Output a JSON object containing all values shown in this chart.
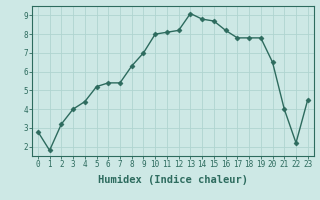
{
  "x": [
    0,
    1,
    2,
    3,
    4,
    5,
    6,
    7,
    8,
    9,
    10,
    11,
    12,
    13,
    14,
    15,
    16,
    17,
    18,
    19,
    20,
    21,
    22,
    23
  ],
  "y": [
    2.8,
    1.8,
    3.2,
    4.0,
    4.4,
    5.2,
    5.4,
    5.4,
    6.3,
    7.0,
    8.0,
    8.1,
    8.2,
    9.1,
    8.8,
    8.7,
    8.2,
    7.8,
    7.8,
    7.8,
    6.5,
    4.0,
    2.2,
    4.5
  ],
  "line_color": "#2d6b5e",
  "marker": "D",
  "marker_size": 2.5,
  "bg_color": "#cde8e5",
  "grid_color": "#b0d4d0",
  "xlabel": "Humidex (Indice chaleur)",
  "ylim": [
    1.5,
    9.5
  ],
  "xlim": [
    -0.5,
    23.5
  ],
  "yticks": [
    2,
    3,
    4,
    5,
    6,
    7,
    8,
    9
  ],
  "xticks": [
    0,
    1,
    2,
    3,
    4,
    5,
    6,
    7,
    8,
    9,
    10,
    11,
    12,
    13,
    14,
    15,
    16,
    17,
    18,
    19,
    20,
    21,
    22,
    23
  ],
  "tick_label_fontsize": 5.5,
  "xlabel_fontsize": 7.5,
  "line_width": 1.0
}
